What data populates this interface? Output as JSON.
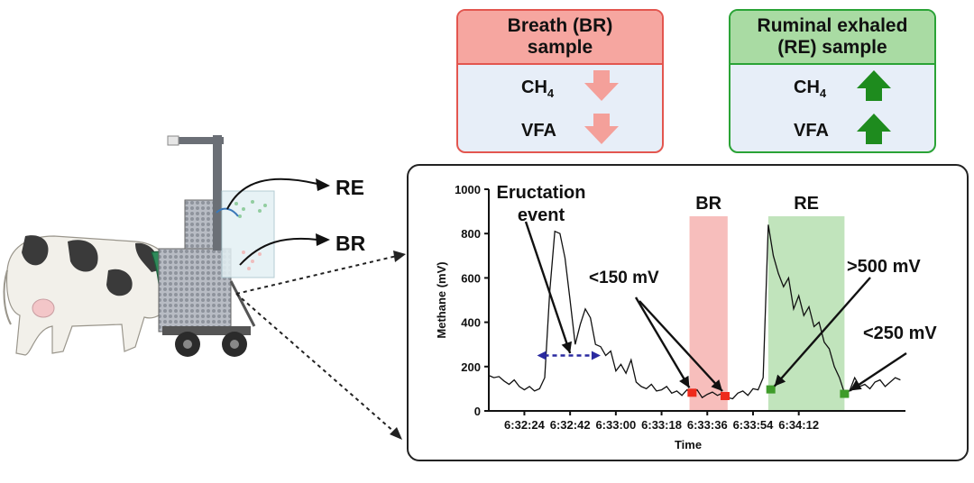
{
  "br_box": {
    "title_line1": "Breath (BR)",
    "title_line2": "sample",
    "rows": [
      "CH",
      "VFA"
    ],
    "ch4_sub": "4",
    "direction": "down",
    "color_border": "#e3564f",
    "color_head": "#f6a6a0",
    "arrow_color": "#f4a09a"
  },
  "re_box": {
    "title_line1": "Ruminal exhaled",
    "title_line2": "(RE) sample",
    "rows": [
      "CH",
      "VFA"
    ],
    "ch4_sub": "4",
    "direction": "up",
    "color_border": "#2aa336",
    "color_head": "#a9dba3",
    "arrow_color": "#1e8b1e"
  },
  "scene": {
    "label_re": "RE",
    "label_br": "BR"
  },
  "chart_data": {
    "type": "line",
    "xlabel": "Time",
    "ylabel": "Methane  (mV)",
    "ylim": [
      0,
      1000
    ],
    "yticks": [
      "0",
      "200",
      "400",
      "600",
      "800",
      "1000"
    ],
    "xticks": [
      "6:32:24",
      "6:32:42",
      "6:33:00",
      "6:33:18",
      "6:33:36",
      "6:33:54",
      "6:34:12"
    ],
    "xlim_seconds_after_start": [
      0,
      164
    ],
    "x_unit": "seconds after 6:32:10",
    "series": [
      {
        "x": [
          0,
          2,
          4,
          6,
          8,
          10,
          12,
          14,
          16,
          18,
          20,
          22,
          24,
          26,
          28,
          30,
          32,
          34,
          36,
          38,
          40,
          42,
          44,
          46,
          48,
          50,
          52,
          54,
          56,
          58,
          60,
          62,
          64,
          66,
          68,
          70,
          72,
          74,
          76,
          78,
          80,
          82,
          84,
          86,
          88,
          90,
          92,
          94,
          96,
          98,
          100,
          102,
          104,
          106,
          108,
          110,
          112,
          114,
          116,
          118,
          120,
          122,
          124,
          126,
          128,
          130,
          132,
          134,
          136,
          138,
          140,
          142,
          144,
          146,
          148,
          150,
          152,
          154,
          156,
          158,
          160,
          162
        ],
        "y": [
          160,
          150,
          155,
          135,
          120,
          140,
          110,
          95,
          110,
          90,
          100,
          150,
          540,
          810,
          800,
          690,
          500,
          300,
          390,
          460,
          420,
          300,
          290,
          250,
          270,
          180,
          210,
          170,
          230,
          130,
          110,
          100,
          120,
          90,
          95,
          110,
          80,
          90,
          70,
          95,
          80,
          95,
          60,
          75,
          85,
          70,
          80,
          60,
          55,
          80,
          90,
          70,
          100,
          95,
          150,
          840,
          700,
          620,
          560,
          600,
          460,
          520,
          430,
          470,
          380,
          400,
          310,
          280,
          200,
          150,
          80,
          90,
          150,
          110,
          120,
          100,
          130,
          140,
          110,
          130,
          150,
          140
        ]
      }
    ],
    "shaded_regions": [
      {
        "label": "BR",
        "x_start": 79,
        "x_end": 94,
        "color": "#f6b3b0"
      },
      {
        "label": "RE",
        "x_start": 110,
        "x_end": 140,
        "color": "#b6dfb0"
      }
    ],
    "markers": [
      {
        "x": 80,
        "y": 80,
        "color": "#ee2a1c"
      },
      {
        "x": 93,
        "y": 65,
        "color": "#ee2a1c"
      },
      {
        "x": 111,
        "y": 95,
        "color": "#3f9c2a"
      },
      {
        "x": 140,
        "y": 75,
        "color": "#3f9c2a"
      }
    ],
    "annotations": [
      {
        "text_line1": "Eructation",
        "text_line2": "event"
      },
      {
        "text": "<150 mV"
      },
      {
        "text": ">500 mV"
      },
      {
        "text": "<250 mV"
      }
    ],
    "event_span": {
      "x_start": 19,
      "x_end": 44,
      "y": 250,
      "color": "#2a2aa0"
    }
  }
}
